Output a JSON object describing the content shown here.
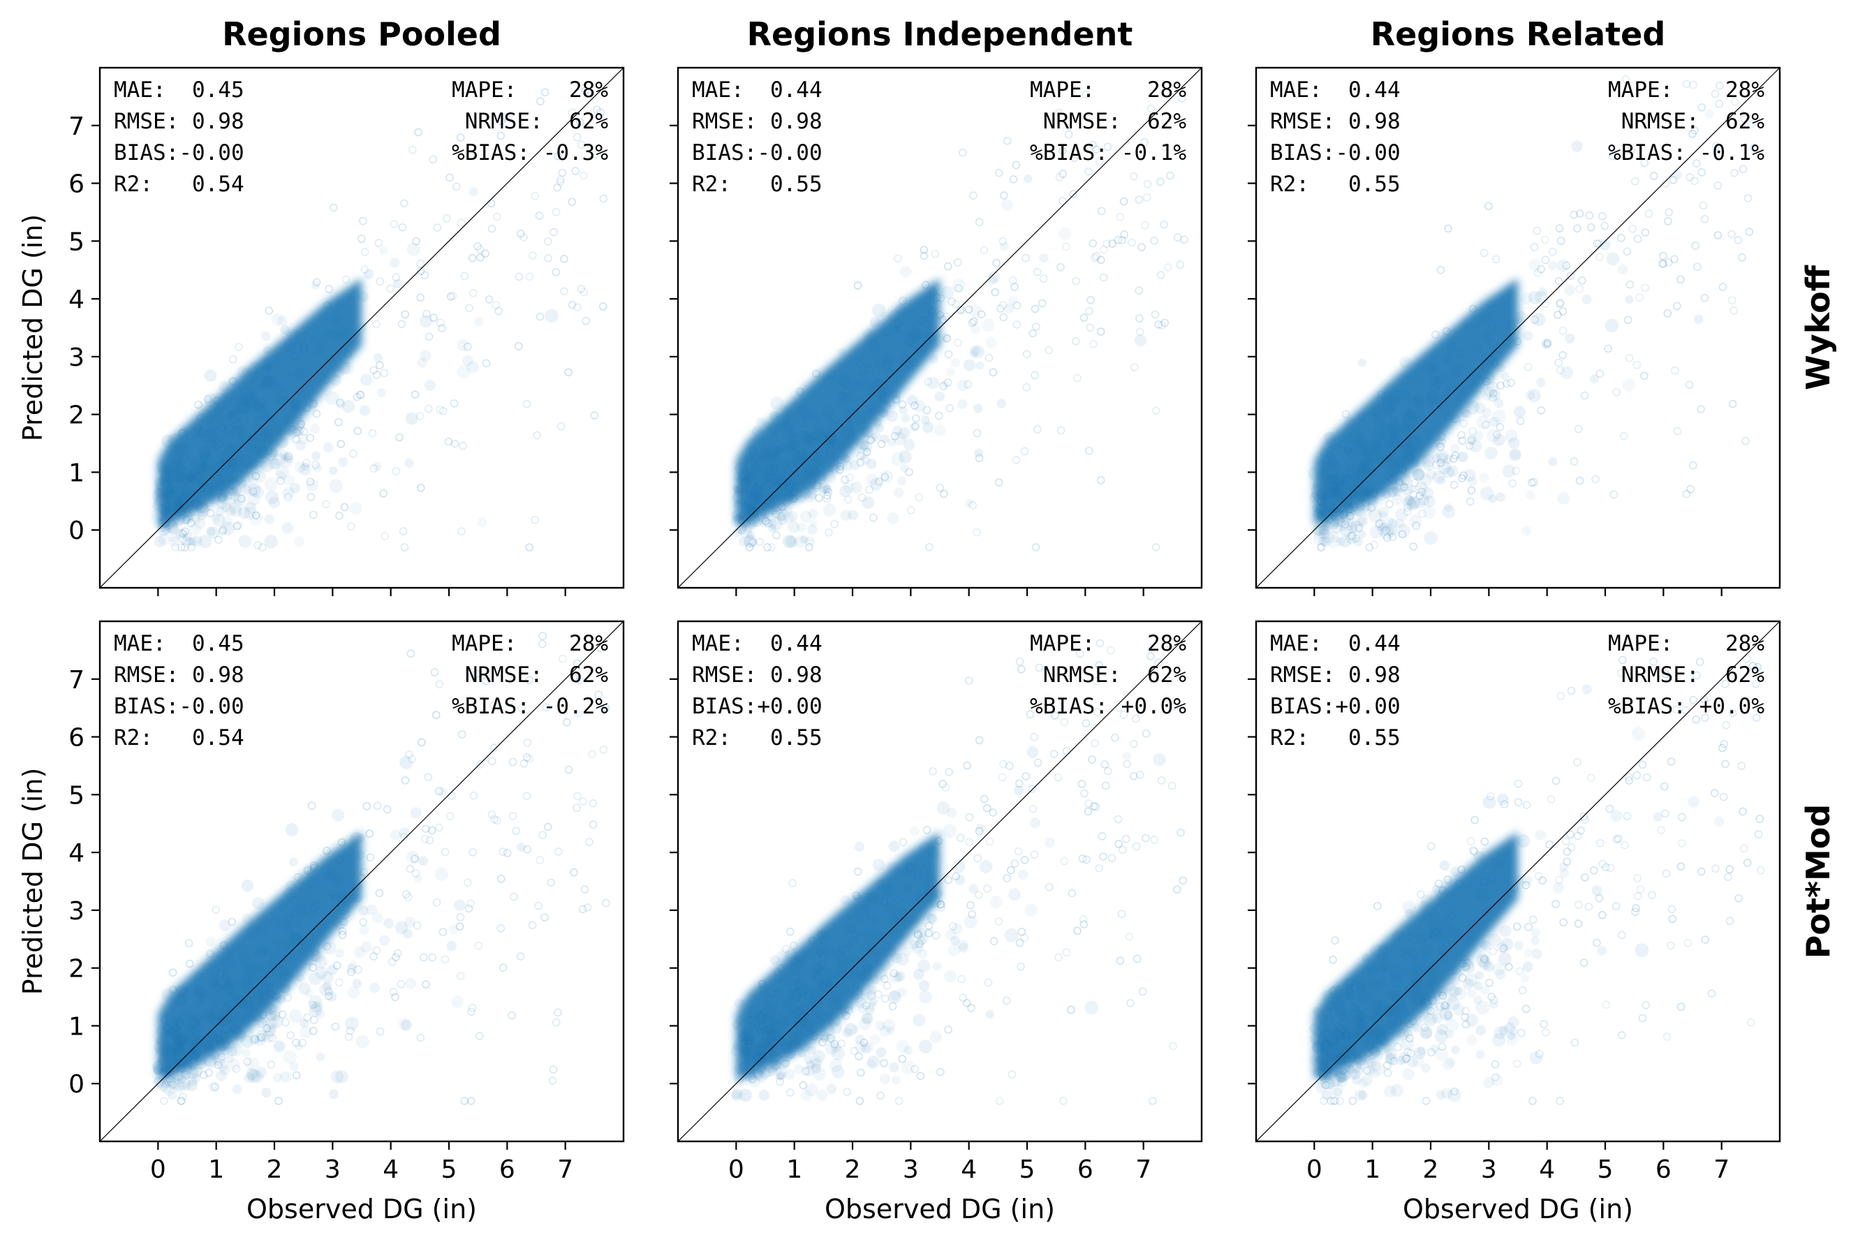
{
  "chart_data": {
    "type": "scatter",
    "layout": "2x3 grid of panels",
    "column_titles": [
      "Regions Pooled",
      "Regions Independent",
      "Regions Related"
    ],
    "row_titles": [
      "Wykoff",
      "Pot*Mod"
    ],
    "xlabel": "Observed DG (in)",
    "ylabel": "Predicted DG (in)",
    "xlim": [
      -1,
      8
    ],
    "ylim": [
      -1,
      8
    ],
    "xticks": [
      0,
      1,
      2,
      3,
      4,
      5,
      6,
      7
    ],
    "yticks": [
      0,
      1,
      2,
      3,
      4,
      5,
      6,
      7
    ],
    "marker": "hollow circle, very low alpha",
    "point_color": "#1f77b4",
    "reference_line": "1:1 identity line",
    "grid": false,
    "panels": [
      {
        "row": 0,
        "col": 0,
        "stats_left": [
          "MAE:  0.45",
          "RMSE: 0.98",
          "BIAS:-0.00",
          "R2:   0.54"
        ],
        "stats_right": [
          "MAPE:    28%",
          "NRMSE:  62%",
          "%BIAS: -0.3%"
        ]
      },
      {
        "row": 0,
        "col": 1,
        "stats_left": [
          "MAE:  0.44",
          "RMSE: 0.98",
          "BIAS:-0.00",
          "R2:   0.55"
        ],
        "stats_right": [
          "MAPE:    28%",
          "NRMSE:  62%",
          "%BIAS: -0.1%"
        ]
      },
      {
        "row": 0,
        "col": 2,
        "stats_left": [
          "MAE:  0.44",
          "RMSE: 0.98",
          "BIAS:-0.00",
          "R2:   0.55"
        ],
        "stats_right": [
          "MAPE:    28%",
          "NRMSE:  62%",
          "%BIAS: -0.1%"
        ]
      },
      {
        "row": 1,
        "col": 0,
        "stats_left": [
          "MAE:  0.45",
          "RMSE: 0.98",
          "BIAS:-0.00",
          "R2:   0.54"
        ],
        "stats_right": [
          "MAPE:    28%",
          "NRMSE:  62%",
          "%BIAS: -0.2%"
        ]
      },
      {
        "row": 1,
        "col": 1,
        "stats_left": [
          "MAE:  0.44",
          "RMSE: 0.98",
          "BIAS:+0.00",
          "R2:   0.55"
        ],
        "stats_right": [
          "MAPE:    28%",
          "NRMSE:  62%",
          "%BIAS: +0.0%"
        ]
      },
      {
        "row": 1,
        "col": 2,
        "stats_left": [
          "MAE:  0.44",
          "RMSE: 0.98",
          "BIAS:+0.00",
          "R2:   0.55"
        ],
        "stats_right": [
          "MAPE:    28%",
          "NRMSE:  62%",
          "%BIAS: +0.0%"
        ]
      }
    ]
  }
}
